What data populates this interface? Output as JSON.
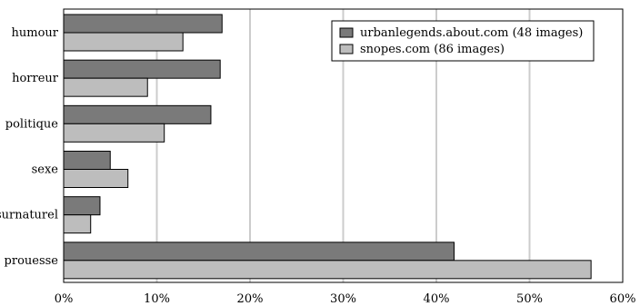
{
  "chart_data": {
    "type": "bar",
    "orientation": "horizontal",
    "categories": [
      "humour",
      "horreur",
      "politique",
      "sexe",
      "surnaturel",
      "prouesse"
    ],
    "series": [
      {
        "name": "urbanlegends.about.com (48 images)",
        "color": "#7a7a7a",
        "values": [
          17.0,
          16.8,
          15.8,
          5.0,
          3.9,
          41.9
        ]
      },
      {
        "name": "snopes.com (86 images)",
        "color": "#bdbdbd",
        "values": [
          12.8,
          9.0,
          10.8,
          6.9,
          2.9,
          56.6
        ]
      }
    ],
    "xlim": [
      0,
      60
    ],
    "xticks": [
      "0%",
      "10%",
      "20%",
      "30%",
      "40%",
      "50%",
      "60%"
    ],
    "grid": "vertical",
    "legend_position": "top-right"
  }
}
